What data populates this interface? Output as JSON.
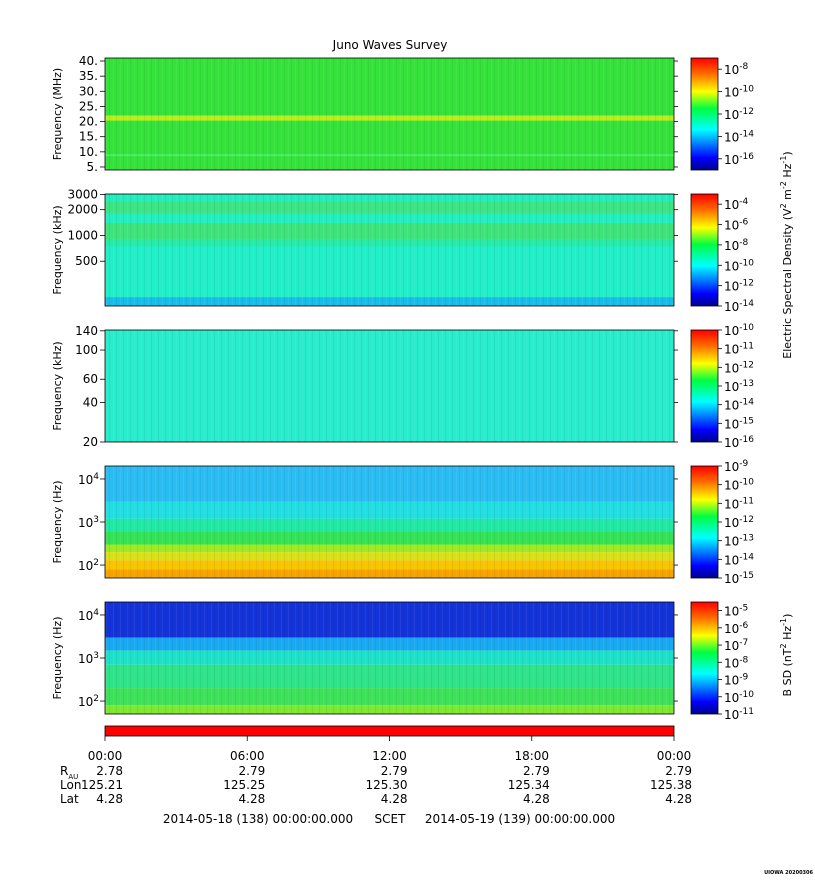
{
  "title": "Juno Waves Survey",
  "footer_stamp": "UIOWA 20200306",
  "time_axis": {
    "tick_labels": [
      "00:00",
      "06:00",
      "12:00",
      "18:00",
      "00:00"
    ],
    "rows": [
      {
        "label": "R",
        "label_sub": "AU",
        "values": [
          "2.78",
          "2.79",
          "2.79",
          "2.79",
          "2.79"
        ]
      },
      {
        "label": "Lon",
        "label_sub": "",
        "values": [
          "125.21",
          "125.25",
          "125.30",
          "125.34",
          "125.38"
        ]
      },
      {
        "label": "Lat",
        "label_sub": "",
        "values": [
          "4.28",
          "4.28",
          "4.28",
          "4.28",
          "4.28"
        ]
      }
    ],
    "start": "2014-05-18 (138) 00:00:00.000",
    "frame": "SCET",
    "end": "2014-05-19 (139) 00:00:00.000"
  },
  "shared_colorbar_label": {
    "text": "Electric Spectral Density (V",
    "sup1": "2",
    "mid": " m",
    "sup2": "-2",
    "mid2": " Hz",
    "sup3": "-1",
    "end": ")"
  },
  "bsd_colorbar_label": {
    "text": "B SD (nT",
    "sup1": "2",
    "mid": " Hz",
    "sup2": "-1",
    "end": ")"
  },
  "status_bar": {
    "color": "#ff0000"
  },
  "chart_data": [
    {
      "type": "heatmap",
      "panel": "HFR high",
      "ylabel": "Frequency (MHz)",
      "y_scale": "linear",
      "ylim": [
        4,
        41
      ],
      "yticks": [
        5,
        10,
        15,
        20,
        25,
        30,
        35,
        40
      ],
      "ytick_labels": [
        "5.",
        "10.",
        "15.",
        "20.",
        "25.",
        "30.",
        "35.",
        "40."
      ],
      "colorbar": {
        "min_exp": -17,
        "max_exp": -7,
        "ticks": [
          "10-16",
          "10-14",
          "10-12",
          "10-10",
          "10-8"
        ]
      },
      "bands": [
        {
          "from": 4,
          "to": 41,
          "color": "#35e23c"
        },
        {
          "from": 8.6,
          "to": 9.2,
          "color": "#4cf06a"
        },
        {
          "from": 20.3,
          "to": 22.0,
          "color": "#b6ef1d"
        }
      ]
    },
    {
      "type": "heatmap",
      "panel": "HFR low",
      "ylabel": "Frequency (kHz)",
      "y_scale": "log",
      "ylim": [
        150,
        3050
      ],
      "yticks": [
        500,
        1000,
        2000,
        3000
      ],
      "ytick_labels": [
        "500",
        "1000",
        "2000",
        "3000"
      ],
      "colorbar": {
        "min_exp": -14,
        "max_exp": -3,
        "ticks": [
          "10-14",
          "10-12",
          "10-10",
          "10-8",
          "10-6",
          "10-4"
        ]
      },
      "bands": [
        {
          "from": 150,
          "to": 3050,
          "color": "#22eec8"
        },
        {
          "from": 150,
          "to": 190,
          "color": "#19bde8"
        },
        {
          "from": 760,
          "to": 900,
          "color": "#27eaa4"
        },
        {
          "from": 900,
          "to": 1400,
          "color": "#3fe37c"
        },
        {
          "from": 1400,
          "to": 1800,
          "color": "#24edc0"
        },
        {
          "from": 1800,
          "to": 2500,
          "color": "#3de483"
        },
        {
          "from": 2500,
          "to": 3050,
          "color": "#23edbc"
        }
      ]
    },
    {
      "type": "heatmap",
      "panel": "LFR high",
      "ylabel": "Frequency (kHz)",
      "y_scale": "log",
      "ylim": [
        20,
        142
      ],
      "yticks": [
        20,
        40,
        60,
        100,
        140
      ],
      "ytick_labels": [
        "20",
        "40",
        "60",
        "100",
        "140"
      ],
      "colorbar": {
        "min_exp": -16,
        "max_exp": -10,
        "ticks": [
          "10-16",
          "10-15",
          "10-14",
          "10-13",
          "10-12",
          "10-11",
          "10-10"
        ]
      },
      "bands": [
        {
          "from": 20,
          "to": 142,
          "color": "#28eccc"
        }
      ]
    },
    {
      "type": "heatmap",
      "panel": "LFR low",
      "ylabel": "Frequency (Hz)",
      "y_scale": "log",
      "ylim": [
        50,
        20000
      ],
      "yticks": [
        100,
        1000,
        10000
      ],
      "ytick_labels": [
        "10^2",
        "10^3",
        "10^4"
      ],
      "colorbar": {
        "min_exp": -15,
        "max_exp": -9,
        "ticks": [
          "10-15",
          "10-14",
          "10-13",
          "10-12",
          "10-11",
          "10-10",
          "10-9"
        ]
      },
      "bands": [
        {
          "from": 50,
          "to": 80,
          "color": "#f5a300"
        },
        {
          "from": 80,
          "to": 130,
          "color": "#f6c400"
        },
        {
          "from": 130,
          "to": 200,
          "color": "#d9e01a"
        },
        {
          "from": 200,
          "to": 300,
          "color": "#9ee824"
        },
        {
          "from": 300,
          "to": 600,
          "color": "#36e255"
        },
        {
          "from": 600,
          "to": 1200,
          "color": "#22e8a6"
        },
        {
          "from": 1200,
          "to": 3000,
          "color": "#22dde2"
        },
        {
          "from": 3000,
          "to": 20000,
          "color": "#2bbcf2"
        }
      ]
    },
    {
      "type": "heatmap",
      "panel": "Magnetic",
      "ylabel": "Frequency (Hz)",
      "y_scale": "log",
      "ylim": [
        50,
        20000
      ],
      "yticks": [
        100,
        1000,
        10000
      ],
      "ytick_labels": [
        "10^2",
        "10^3",
        "10^4"
      ],
      "colorbar": {
        "min_exp": -11,
        "max_exp": -4.5,
        "ticks": [
          "10-11",
          "10-10",
          "10-9",
          "10-8",
          "10-7",
          "10-6",
          "10-5"
        ]
      },
      "bands": [
        {
          "from": 50,
          "to": 80,
          "color": "#7ee830"
        },
        {
          "from": 80,
          "to": 200,
          "color": "#3fe05a"
        },
        {
          "from": 200,
          "to": 700,
          "color": "#2ee38a"
        },
        {
          "from": 700,
          "to": 1500,
          "color": "#1ee0c8"
        },
        {
          "from": 1500,
          "to": 3000,
          "color": "#1aa8f0"
        },
        {
          "from": 3000,
          "to": 20000,
          "color": "#1433d8"
        }
      ]
    }
  ]
}
